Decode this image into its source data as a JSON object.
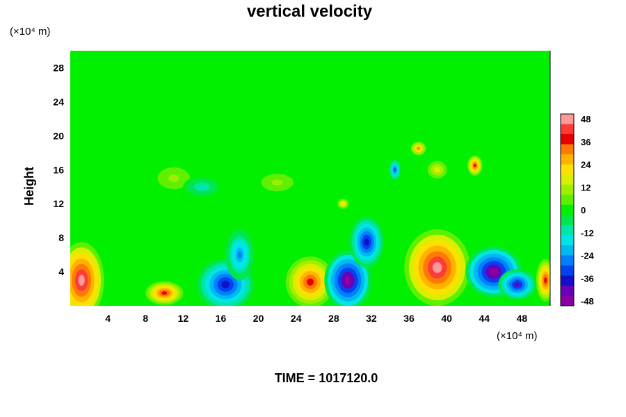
{
  "chart_data": {
    "type": "heatmap",
    "title": "vertical velocity",
    "ylabel": "Height",
    "y_unit": "(×10⁴ m)",
    "x_unit": "(×10⁴ m)",
    "footer": "TIME = 1017120.0",
    "xlim": [
      0,
      51
    ],
    "ylim": [
      0,
      30
    ],
    "x_ticks": [
      4,
      8,
      12,
      16,
      20,
      24,
      28,
      32,
      36,
      40,
      44,
      48
    ],
    "y_ticks": [
      4,
      8,
      12,
      16,
      20,
      24,
      28
    ],
    "colorbar": {
      "ticks": [
        48,
        36,
        24,
        12,
        0,
        -12,
        -24,
        -36,
        -48
      ],
      "range": [
        -48,
        48
      ],
      "colors": [
        "#ff9a9a",
        "#ff3a3a",
        "#e60000",
        "#ff7a00",
        "#ffb300",
        "#ffe000",
        "#d8f000",
        "#9ef000",
        "#5ef000",
        "#00f000",
        "#00e64c",
        "#00e6a8",
        "#00e6e6",
        "#00b8f0",
        "#0080ff",
        "#0044ee",
        "#1010c8",
        "#6a00b8",
        "#8a00a0"
      ]
    },
    "background_value": 0,
    "features": [
      {
        "x": 1.2,
        "y": 3.0,
        "rx": 2.4,
        "ry": 4.5,
        "value": 48
      },
      {
        "x": 10.0,
        "y": 1.5,
        "rx": 2.0,
        "ry": 1.4,
        "value": 40
      },
      {
        "x": 16.5,
        "y": 2.5,
        "rx": 3.0,
        "ry": 3.0,
        "value": -36
      },
      {
        "x": 18.0,
        "y": 6.0,
        "rx": 1.5,
        "ry": 3.0,
        "value": -24
      },
      {
        "x": 25.5,
        "y": 2.8,
        "rx": 2.6,
        "ry": 3.0,
        "value": 36
      },
      {
        "x": 29.5,
        "y": 3.0,
        "rx": 2.5,
        "ry": 3.5,
        "value": -48
      },
      {
        "x": 31.5,
        "y": 7.5,
        "rx": 1.8,
        "ry": 3.0,
        "value": -36
      },
      {
        "x": 39.0,
        "y": 4.5,
        "rx": 3.5,
        "ry": 4.5,
        "value": 48
      },
      {
        "x": 45.0,
        "y": 4.0,
        "rx": 3.0,
        "ry": 3.0,
        "value": -48
      },
      {
        "x": 47.5,
        "y": 2.5,
        "rx": 2.0,
        "ry": 1.8,
        "value": -40
      },
      {
        "x": 50.5,
        "y": 3.0,
        "rx": 1.0,
        "ry": 2.5,
        "value": 36
      },
      {
        "x": 37.0,
        "y": 18.5,
        "rx": 0.8,
        "ry": 0.8,
        "value": 30
      },
      {
        "x": 43.0,
        "y": 16.5,
        "rx": 0.8,
        "ry": 1.2,
        "value": 36
      },
      {
        "x": 34.5,
        "y": 16.0,
        "rx": 0.6,
        "ry": 1.2,
        "value": -30
      },
      {
        "x": 39.0,
        "y": 16.0,
        "rx": 1.2,
        "ry": 1.2,
        "value": 18
      },
      {
        "x": 29.0,
        "y": 12.0,
        "rx": 0.6,
        "ry": 0.6,
        "value": 24
      },
      {
        "x": 11.0,
        "y": 15.0,
        "rx": 2.0,
        "ry": 1.5,
        "value": 10
      },
      {
        "x": 14.0,
        "y": 14.0,
        "rx": 2.0,
        "ry": 1.2,
        "value": -12
      },
      {
        "x": 22.0,
        "y": 14.5,
        "rx": 2.0,
        "ry": 1.2,
        "value": 10
      }
    ]
  }
}
